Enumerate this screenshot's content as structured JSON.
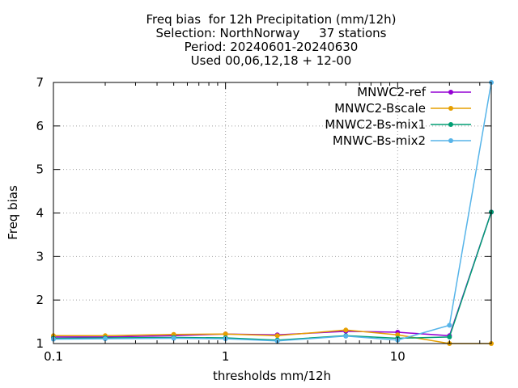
{
  "chart_data": {
    "type": "line",
    "title_lines": [
      "Freq bias  for 12h Precipitation (mm/12h)",
      "Selection: NorthNorway     37 stations",
      "Period: 20240601-20240630",
      "Used 00,06,12,18 + 12-00"
    ],
    "xlabel": "thresholds mm/12h",
    "ylabel": "Freq bias",
    "x_scale": "log",
    "xlim": [
      0.1,
      35
    ],
    "ylim": [
      1,
      7
    ],
    "x_ticks": [
      0.1,
      1,
      10
    ],
    "x_tick_labels": [
      "0.1",
      "1",
      "10"
    ],
    "y_ticks": [
      1,
      2,
      3,
      4,
      5,
      6,
      7
    ],
    "y_tick_labels": [
      "1",
      "2",
      "3",
      "4",
      "5",
      "6",
      "7"
    ],
    "grid": true,
    "legend_position": "top-right",
    "x": [
      0.1,
      0.2,
      0.5,
      1,
      2,
      5,
      10,
      20,
      35
    ],
    "series": [
      {
        "name": "MNWC2-ref",
        "color": "#9400d3",
        "values": [
          1.15,
          1.15,
          1.18,
          1.22,
          1.2,
          1.28,
          1.26,
          1.18,
          4.02
        ]
      },
      {
        "name": "MNWC2-Bscale",
        "color": "#e69f00",
        "values": [
          1.18,
          1.18,
          1.21,
          1.22,
          1.18,
          1.31,
          1.2,
          1.0,
          1.0
        ]
      },
      {
        "name": "MNWC2-Bs-mix1",
        "color": "#009e73",
        "values": [
          1.12,
          1.13,
          1.14,
          1.13,
          1.08,
          1.18,
          1.12,
          1.15,
          4.02
        ]
      },
      {
        "name": "MNWC-Bs-mix2",
        "color": "#56b4e9",
        "values": [
          1.1,
          1.11,
          1.12,
          1.11,
          1.06,
          1.17,
          1.08,
          1.42,
          7.0
        ]
      }
    ]
  }
}
